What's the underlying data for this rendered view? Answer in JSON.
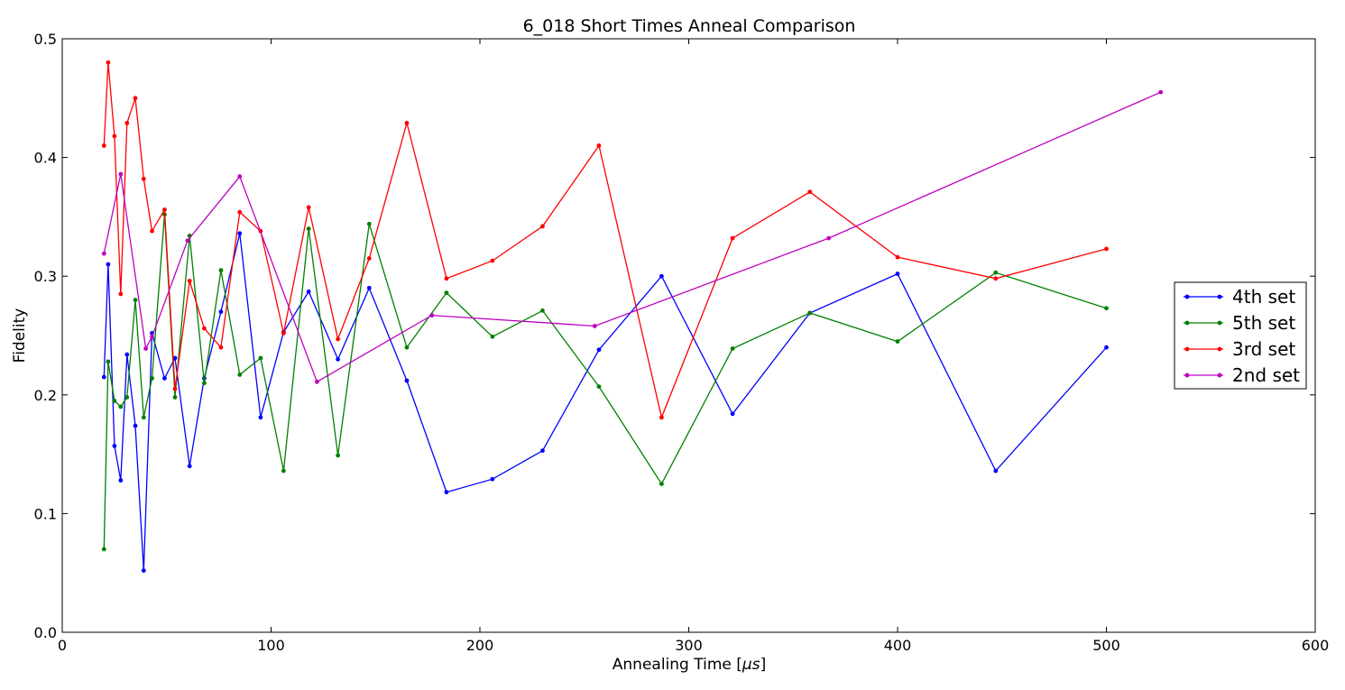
{
  "chart_data": {
    "type": "line",
    "title": "6_018 Short Times Anneal Comparison",
    "xlabel": "Annealing Time [",
    "xlabel_unit": "μs",
    "xlabel_close": "]",
    "ylabel": "Fidelity",
    "xlim": [
      0,
      600
    ],
    "ylim": [
      0,
      0.5
    ],
    "xticks": [
      "0",
      "100",
      "200",
      "300",
      "400",
      "500",
      "600"
    ],
    "yticks": [
      "0.0",
      "0.1",
      "0.2",
      "0.3",
      "0.4",
      "0.5"
    ],
    "grid": false,
    "legend_position": "right",
    "series": [
      {
        "name": "4th set",
        "color": "#0000ff",
        "x": [
          20,
          22,
          25,
          28,
          31,
          35,
          39,
          43,
          49,
          54,
          61,
          68,
          76,
          85,
          95,
          106,
          118,
          132,
          147,
          165,
          184,
          206,
          230,
          257,
          287,
          321,
          358,
          400,
          447,
          500
        ],
        "y": [
          0.215,
          0.31,
          0.157,
          0.128,
          0.234,
          0.174,
          0.052,
          0.252,
          0.214,
          0.231,
          0.14,
          0.214,
          0.27,
          0.336,
          0.181,
          0.253,
          0.287,
          0.23,
          0.29,
          0.212,
          0.118,
          0.129,
          0.153,
          0.238,
          0.3,
          0.184,
          0.269,
          0.302,
          0.136,
          0.24
        ]
      },
      {
        "name": "5th set",
        "color": "#008000",
        "x": [
          20,
          22,
          25,
          28,
          31,
          35,
          39,
          43,
          49,
          54,
          61,
          68,
          76,
          85,
          95,
          106,
          118,
          132,
          147,
          165,
          184,
          206,
          230,
          257,
          287,
          321,
          358,
          400,
          447,
          500
        ],
        "y": [
          0.07,
          0.228,
          0.195,
          0.19,
          0.198,
          0.28,
          0.181,
          0.214,
          0.352,
          0.198,
          0.334,
          0.21,
          0.305,
          0.217,
          0.231,
          0.136,
          0.34,
          0.149,
          0.344,
          0.24,
          0.286,
          0.249,
          0.271,
          0.207,
          0.125,
          0.239,
          0.269,
          0.245,
          0.303,
          0.273
        ]
      },
      {
        "name": "3rd set",
        "color": "#ff0000",
        "x": [
          20,
          22,
          25,
          28,
          31,
          35,
          39,
          43,
          49,
          54,
          61,
          68,
          76,
          85,
          95,
          106,
          118,
          132,
          147,
          165,
          184,
          206,
          230,
          257,
          287,
          321,
          358,
          400,
          447,
          500
        ],
        "y": [
          0.41,
          0.48,
          0.418,
          0.285,
          0.429,
          0.45,
          0.382,
          0.338,
          0.356,
          0.205,
          0.296,
          0.256,
          0.24,
          0.354,
          0.338,
          0.252,
          0.358,
          0.247,
          0.315,
          0.429,
          0.298,
          0.313,
          0.342,
          0.41,
          0.181,
          0.332,
          0.371,
          0.316,
          0.298,
          0.323
        ]
      },
      {
        "name": "2nd set",
        "color": "#bf00bf",
        "x": [
          20,
          28,
          40,
          43,
          60,
          85,
          122,
          177,
          255,
          367,
          526
        ],
        "y": [
          0.319,
          0.386,
          0.239,
          0.249,
          0.33,
          0.384,
          0.211,
          0.267,
          0.258,
          0.332,
          0.455
        ]
      }
    ]
  }
}
